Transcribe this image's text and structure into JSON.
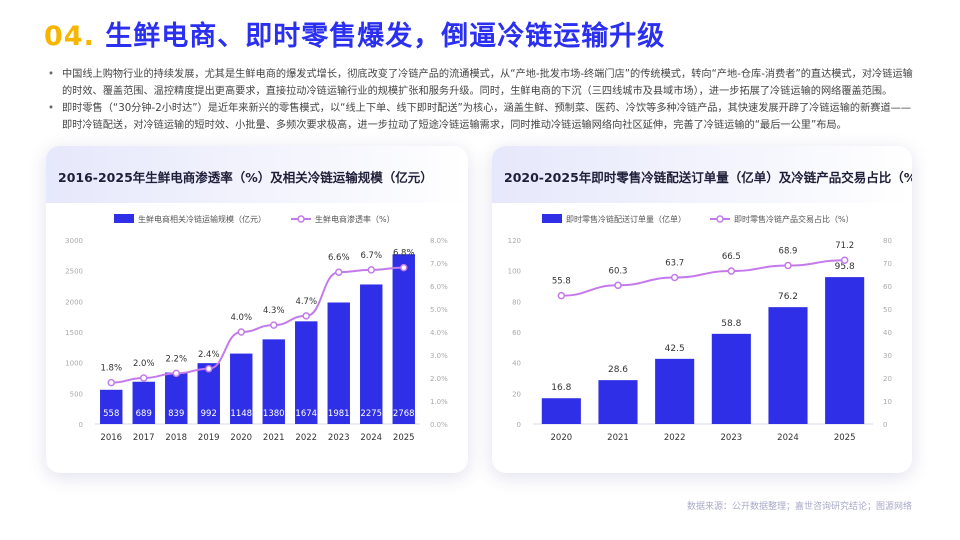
{
  "title": {
    "number": "04.",
    "text": "生鲜电商、即时零售爆发，倒逼冷链运输升级"
  },
  "bullets": [
    "中国线上购物行业的持续发展，尤其是生鲜电商的爆发式增长，彻底改变了冷链产品的流通模式，从“产地-批发市场-终端门店”的传统模式，转向“产地-仓库-消费者”的直达模式，对冷链运输的时效、覆盖范围、温控精度提出更高要求，直接拉动冷链运输行业的规模扩张和服务升级。同时，生鲜电商的下沉（三四线城市及县域市场），进一步拓展了冷链运输的网络覆盖范围。",
    "即时零售（“30分钟-2小时达”）是近年来新兴的零售模式，以“线上下单、线下即时配送”为核心，涵盖生鲜、预制菜、医药、冷饮等多种冷链产品，其快速发展开辟了冷链运输的新赛道——即时冷链配送，对冷链运输的短时效、小批量、多频次要求极高，进一步拉动了短途冷链运输需求，同时推动冷链运输网络向社区延伸，完善了冷链运输的“最后一公里”布局。"
  ],
  "source": "数据来源：公开数据整理；嘉世咨询研究结论；图源网络",
  "chart_data": [
    {
      "type": "bar+line",
      "title": "2016-2025年生鲜电商渗透率（%）及相关冷链运输规模（亿元）",
      "categories": [
        "2016",
        "2017",
        "2018",
        "2019",
        "2020",
        "2021",
        "2022",
        "2023",
        "2024",
        "2025"
      ],
      "series": [
        {
          "name": "生鲜电商相关冷链运输规模（亿元）",
          "type": "bar",
          "axis": "left",
          "values": [
            558,
            689,
            839,
            992,
            1148,
            1380,
            1674,
            1981,
            2275,
            2768
          ],
          "labels": [
            "558",
            "689",
            "839",
            "992",
            "1148",
            "1380",
            "1674",
            "1981",
            "2275",
            "2768"
          ]
        },
        {
          "name": "生鲜电商渗透率（%）",
          "type": "line",
          "axis": "right",
          "values": [
            1.8,
            2.0,
            2.2,
            2.4,
            4.0,
            4.3,
            4.7,
            6.6,
            6.7,
            6.8
          ],
          "labels": [
            "1.8%",
            "2.0%",
            "2.2%",
            "2.4%",
            "4.0%",
            "4.3%",
            "4.7%",
            "6.6%",
            "6.7%",
            "6.8%"
          ]
        }
      ],
      "left_axis": {
        "min": 0,
        "max": 3000,
        "ticks": [
          "0",
          "500",
          "1000",
          "1500",
          "2000",
          "2500",
          "3000"
        ]
      },
      "right_axis": {
        "min": 0,
        "max": 8,
        "ticks": [
          "0.0%",
          "1.0%",
          "2.0%",
          "3.0%",
          "4.0%",
          "5.0%",
          "6.0%",
          "7.0%",
          "8.0%"
        ]
      },
      "colors": {
        "bar": "#2e2fe6",
        "line": "#c47aea"
      }
    },
    {
      "type": "bar+line",
      "title": "2020-2025年即时零售冷链配送订单量（亿单）及冷链产品交易占比（%）",
      "categories": [
        "2020",
        "2021",
        "2022",
        "2023",
        "2024",
        "2025"
      ],
      "series": [
        {
          "name": "即时零售冷链配送订单量（亿单）",
          "type": "bar",
          "axis": "left",
          "values": [
            16.8,
            28.6,
            42.5,
            58.8,
            76.2,
            95.8
          ],
          "labels": [
            "16.8",
            "28.6",
            "42.5",
            "58.8",
            "76.2",
            "95.8"
          ]
        },
        {
          "name": "即时零售冷链产品交易占比（%）",
          "type": "line",
          "axis": "right",
          "values": [
            55.8,
            60.3,
            63.7,
            66.5,
            68.9,
            71.2
          ],
          "labels": [
            "55.8",
            "60.3",
            "63.7",
            "66.5",
            "68.9",
            "71.2"
          ]
        }
      ],
      "left_axis": {
        "min": 0,
        "max": 120,
        "ticks": [
          "0",
          "20",
          "40",
          "60",
          "80",
          "100",
          "120"
        ]
      },
      "right_axis": {
        "min": 0,
        "max": 80,
        "ticks": [
          "0",
          "10",
          "20",
          "30",
          "40",
          "50",
          "60",
          "70",
          "80"
        ]
      },
      "colors": {
        "bar": "#2e2fe6",
        "line": "#c47aea"
      }
    }
  ]
}
